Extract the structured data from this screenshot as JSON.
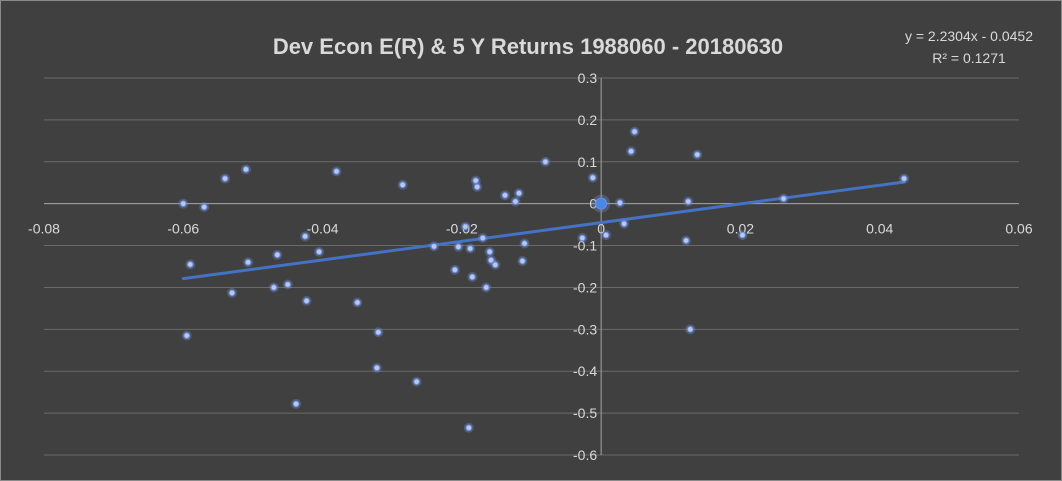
{
  "chart_data": {
    "type": "scatter",
    "title": "Dev Econ     E(R) & 5 Y Returns 1988060 - 20180630",
    "xlim": [
      -0.08,
      0.06
    ],
    "ylim": [
      -0.6,
      0.3
    ],
    "x_ticks": [
      "-0.08",
      "-0.06",
      "-0.04",
      "-0.02",
      "0",
      "0.02",
      "0.04",
      "0.06"
    ],
    "y_ticks": [
      "0.3",
      "0.2",
      "0.1",
      "0",
      "-0.1",
      "-0.2",
      "-0.3",
      "-0.4",
      "-0.5",
      "-0.6"
    ],
    "x_tick_values": [
      -0.08,
      -0.06,
      -0.04,
      -0.02,
      0,
      0.02,
      0.04,
      0.06
    ],
    "y_tick_values": [
      0.3,
      0.2,
      0.1,
      0,
      -0.1,
      -0.2,
      -0.3,
      -0.4,
      -0.5,
      -0.6
    ],
    "grid": "horizontal",
    "colors": {
      "background": "#404040",
      "point": "#6f8fd8",
      "trendline": "#4472c4",
      "text": "#d9d9d9",
      "grid": "#6a6a6a",
      "axis": "#a6a6a6"
    },
    "trendline": {
      "equation": "y = 2.2304x - 0.0452",
      "r_squared": "R² = 0.1271",
      "slope": 2.2304,
      "intercept": -0.0452,
      "x_range": [
        -0.06,
        0.0435
      ]
    },
    "points": [
      {
        "x": -0.06,
        "y": 0.0
      },
      {
        "x": -0.057,
        "y": -0.008
      },
      {
        "x": -0.059,
        "y": -0.145
      },
      {
        "x": -0.0595,
        "y": -0.315
      },
      {
        "x": -0.054,
        "y": 0.06
      },
      {
        "x": -0.051,
        "y": 0.082
      },
      {
        "x": -0.053,
        "y": -0.213
      },
      {
        "x": -0.0507,
        "y": -0.14
      },
      {
        "x": -0.0465,
        "y": -0.122
      },
      {
        "x": -0.047,
        "y": -0.2
      },
      {
        "x": -0.045,
        "y": -0.193
      },
      {
        "x": -0.0425,
        "y": -0.078
      },
      {
        "x": -0.0423,
        "y": -0.232
      },
      {
        "x": -0.0405,
        "y": -0.115
      },
      {
        "x": -0.0438,
        "y": -0.478
      },
      {
        "x": -0.038,
        "y": 0.077
      },
      {
        "x": -0.035,
        "y": -0.236
      },
      {
        "x": -0.032,
        "y": -0.307
      },
      {
        "x": -0.0322,
        "y": -0.392
      },
      {
        "x": -0.0285,
        "y": 0.045
      },
      {
        "x": -0.0265,
        "y": -0.425
      },
      {
        "x": -0.024,
        "y": -0.102
      },
      {
        "x": -0.021,
        "y": -0.158
      },
      {
        "x": -0.0205,
        "y": -0.103
      },
      {
        "x": -0.0195,
        "y": -0.055
      },
      {
        "x": -0.0188,
        "y": -0.107
      },
      {
        "x": -0.019,
        "y": -0.535
      },
      {
        "x": -0.0185,
        "y": -0.175
      },
      {
        "x": -0.018,
        "y": 0.055
      },
      {
        "x": -0.0178,
        "y": 0.04
      },
      {
        "x": -0.017,
        "y": -0.082
      },
      {
        "x": -0.0165,
        "y": -0.2
      },
      {
        "x": -0.016,
        "y": -0.115
      },
      {
        "x": -0.0158,
        "y": -0.135
      },
      {
        "x": -0.0152,
        "y": -0.146
      },
      {
        "x": -0.0138,
        "y": 0.02
      },
      {
        "x": -0.0123,
        "y": 0.005
      },
      {
        "x": -0.0118,
        "y": 0.025
      },
      {
        "x": -0.0113,
        "y": -0.137
      },
      {
        "x": -0.011,
        "y": -0.095
      },
      {
        "x": -0.008,
        "y": 0.1
      },
      {
        "x": -0.0027,
        "y": -0.082
      },
      {
        "x": -0.0012,
        "y": 0.062
      },
      {
        "x": 0.0,
        "y": 0.0
      },
      {
        "x": 0.0007,
        "y": -0.075
      },
      {
        "x": 0.0027,
        "y": 0.002
      },
      {
        "x": 0.0033,
        "y": -0.048
      },
      {
        "x": 0.0043,
        "y": 0.125
      },
      {
        "x": 0.0048,
        "y": 0.172
      },
      {
        "x": 0.0122,
        "y": -0.088
      },
      {
        "x": 0.0125,
        "y": 0.005
      },
      {
        "x": 0.0128,
        "y": -0.3
      },
      {
        "x": 0.0138,
        "y": 0.117
      },
      {
        "x": 0.0203,
        "y": -0.075
      },
      {
        "x": 0.0262,
        "y": 0.012
      },
      {
        "x": 0.0435,
        "y": 0.06
      }
    ]
  }
}
